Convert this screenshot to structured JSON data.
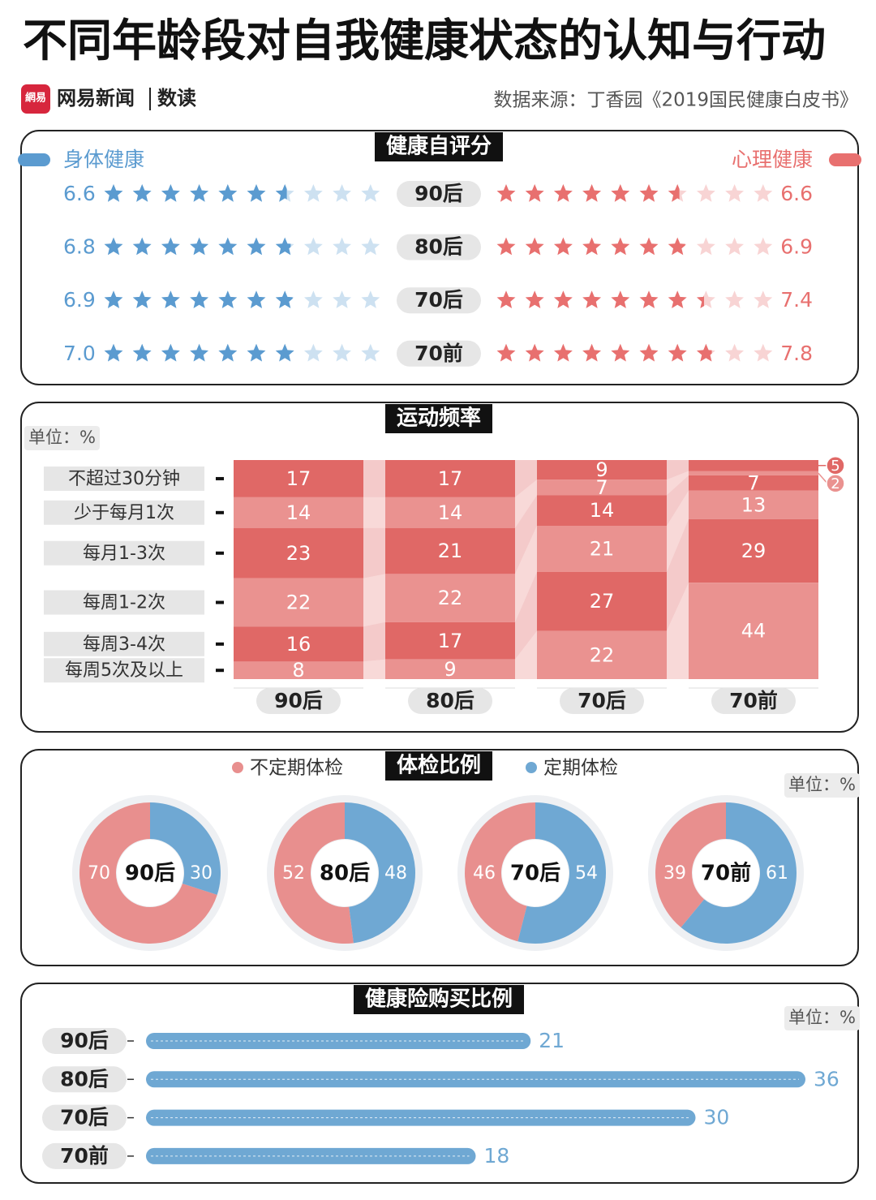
{
  "header": {
    "title": "不同年龄段对自我健康状态的认知与行动",
    "logo": "網易",
    "brand": "网易新闻",
    "section": "数读",
    "source": "数据来源：丁香园《2019国民健康白皮书》"
  },
  "chart_data": [
    {
      "type": "rating",
      "title": "健康自评分",
      "categories": [
        "90后",
        "80后",
        "70后",
        "70前"
      ],
      "ylim": [
        0,
        10
      ],
      "series": [
        {
          "name": "身体健康",
          "color": "#5b9bd0",
          "values": [
            6.6,
            6.8,
            6.9,
            7.0
          ],
          "value_labels": [
            "6.6",
            "6.8",
            "6.9",
            "7.0"
          ]
        },
        {
          "name": "心理健康",
          "color": "#e8706f",
          "values": [
            6.6,
            6.9,
            7.4,
            7.8
          ]
        }
      ]
    },
    {
      "type": "stacked-bar",
      "title": "运动频率",
      "unit_label": "单位：%",
      "categories": [
        "90后",
        "80后",
        "70后",
        "70前"
      ],
      "ylim": [
        0,
        100
      ],
      "series": [
        {
          "name": "不超过30分钟",
          "color": "#e06866",
          "values": [
            17,
            17,
            9,
            5
          ]
        },
        {
          "name": "少于每月1次",
          "color": "#ea9290",
          "values": [
            14,
            14,
            7,
            2
          ]
        },
        {
          "name": "每月1-3次",
          "color": "#e06866",
          "values": [
            23,
            21,
            14,
            7
          ]
        },
        {
          "name": "每周1-2次",
          "color": "#ea9290",
          "values": [
            22,
            22,
            21,
            13
          ]
        },
        {
          "name": "每周3-4次",
          "color": "#e06866",
          "values": [
            16,
            17,
            27,
            29
          ]
        },
        {
          "name": "每周5次及以上",
          "color": "#ea9290",
          "values": [
            8,
            9,
            22,
            44
          ]
        }
      ]
    },
    {
      "type": "donut",
      "title": "体检比例",
      "unit_label": "单位：%",
      "categories": [
        "90后",
        "80后",
        "70后",
        "70前"
      ],
      "series": [
        {
          "name": "不定期体检",
          "color": "#e88f8e",
          "values": [
            70,
            52,
            46,
            39
          ]
        },
        {
          "name": "定期体检",
          "color": "#6fa8d3",
          "values": [
            30,
            48,
            54,
            61
          ]
        }
      ]
    },
    {
      "type": "bar",
      "title": "健康险购买比例",
      "unit_label": "单位：%",
      "categories": [
        "90后",
        "80后",
        "70后",
        "70前"
      ],
      "values": [
        21,
        36,
        30,
        18
      ],
      "color": "#6fa8d3",
      "xlim": [
        0,
        36
      ]
    }
  ]
}
